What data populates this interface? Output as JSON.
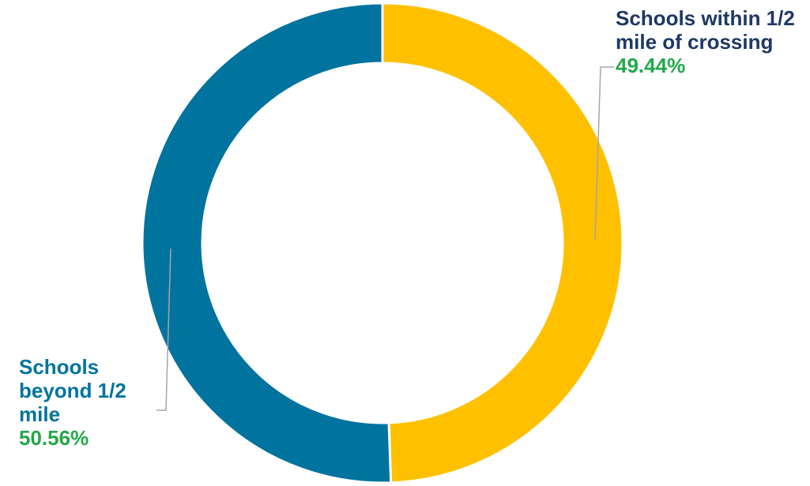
{
  "chart_data": {
    "type": "pie",
    "donut": true,
    "title": "",
    "slices": [
      {
        "label": "Schools within 1/2 mile of crossing",
        "value": 49.44,
        "display_value": "49.44%",
        "color": "#FFC000",
        "label_color": "#1F3864"
      },
      {
        "label": "Schools beyond 1/2 mile",
        "value": 50.56,
        "display_value": "50.56%",
        "color": "#00739E",
        "label_color": "#00739E"
      }
    ],
    "percent_color": "#22A84A",
    "legend": "none"
  }
}
